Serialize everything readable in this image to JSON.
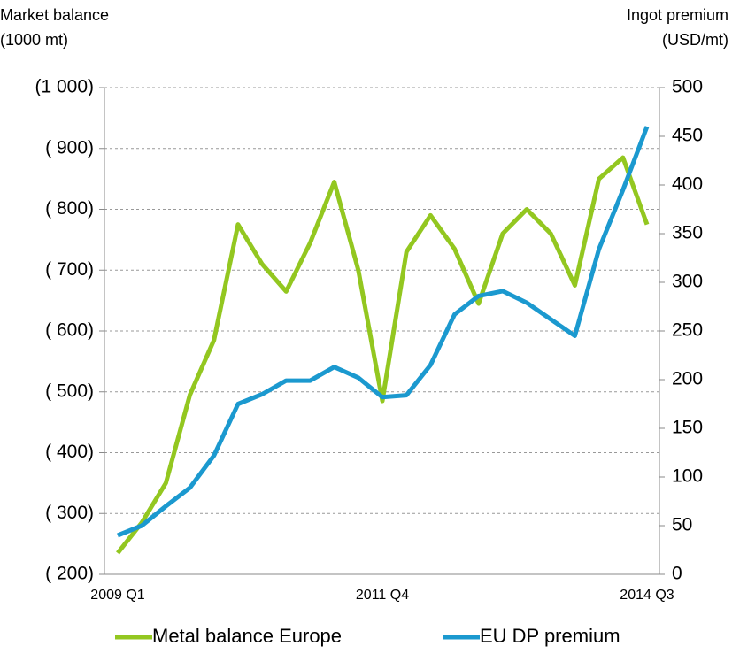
{
  "chart_data": {
    "type": "line",
    "ylabel": [
      "Market balance",
      "(1000 mt)"
    ],
    "y2label": [
      "Ingot premium",
      "(USD/mt)"
    ],
    "categories": [
      "2009 Q1",
      null,
      null,
      null,
      null,
      null,
      null,
      null,
      null,
      null,
      null,
      "2011 Q4",
      null,
      null,
      null,
      null,
      null,
      null,
      null,
      null,
      null,
      null,
      "2014 Q3"
    ],
    "series": [
      {
        "name": "Metal balance Europe",
        "color": "#93c720",
        "axis": "y",
        "values": [
          235,
          285,
          350,
          495,
          585,
          775,
          710,
          665,
          745,
          845,
          700,
          485,
          730,
          790,
          735,
          645,
          760,
          800,
          760,
          675,
          850,
          885,
          775
        ]
      },
      {
        "name": "EU DP premium",
        "color": "#1b99cf",
        "axis": "y2",
        "values": [
          40,
          50,
          70,
          89,
          122,
          175,
          185,
          199,
          199,
          213,
          202,
          182,
          184,
          215,
          267,
          286,
          291,
          279,
          262,
          245,
          334,
          395,
          460
        ]
      }
    ],
    "ylim": [
      200,
      1000
    ],
    "yticks": [
      {
        "value": 200,
        "label": "( 200)"
      },
      {
        "value": 300,
        "label": "( 300)"
      },
      {
        "value": 400,
        "label": "( 400)"
      },
      {
        "value": 500,
        "label": "( 500)"
      },
      {
        "value": 600,
        "label": "( 600)"
      },
      {
        "value": 700,
        "label": "( 700)"
      },
      {
        "value": 800,
        "label": "( 800)"
      },
      {
        "value": 900,
        "label": "( 900)"
      },
      {
        "value": 1000,
        "label": "(1 000)"
      }
    ],
    "y2lim": [
      0,
      500
    ],
    "y2ticks": [
      0,
      50,
      100,
      150,
      200,
      250,
      300,
      350,
      400,
      450,
      500
    ],
    "grid": true,
    "legend": "bottom"
  }
}
